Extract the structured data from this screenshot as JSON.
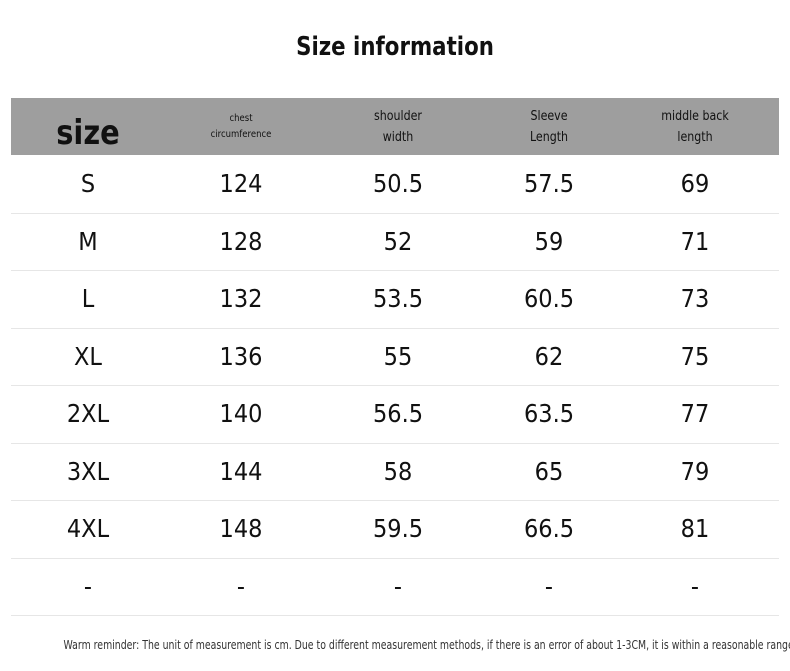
{
  "title": "Size information",
  "table": {
    "header": [
      [
        "size"
      ],
      [
        "chest",
        "circumference"
      ],
      [
        "shoulder",
        "width"
      ],
      [
        "Sleeve",
        "Length"
      ],
      [
        "middle back",
        "length"
      ]
    ],
    "rows": [
      [
        "S",
        "124",
        "50.5",
        "57.5",
        "69"
      ],
      [
        "M",
        "128",
        "52",
        "59",
        "71"
      ],
      [
        "L",
        "132",
        "53.5",
        "60.5",
        "73"
      ],
      [
        "XL",
        "136",
        "55",
        "62",
        "75"
      ],
      [
        "2XL",
        "140",
        "56.5",
        "63.5",
        "77"
      ],
      [
        "3XL",
        "144",
        "58",
        "65",
        "79"
      ],
      [
        "4XL",
        "148",
        "59.5",
        "66.5",
        "81"
      ],
      [
        "-",
        "-",
        "-",
        "-",
        "-"
      ]
    ]
  },
  "footer": "Warm reminder: The unit of measurement is cm. Due to different measurement methods, if there is an error of about 1-3CM, it is within a reasonable range"
}
